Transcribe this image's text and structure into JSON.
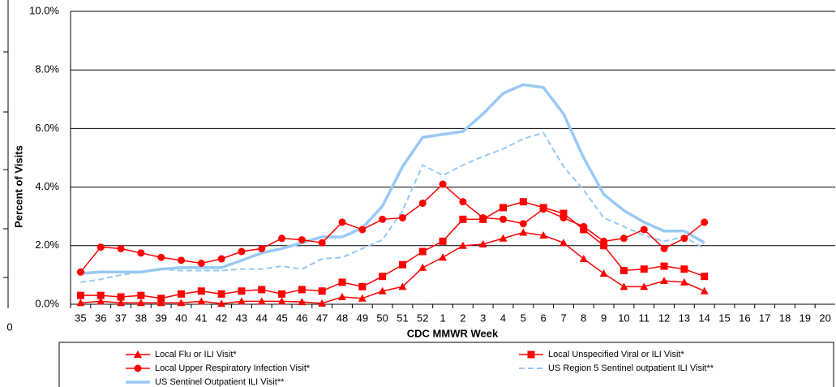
{
  "clipped_panel": {
    "x_tick_label": "0"
  },
  "chart_data": {
    "type": "line",
    "y_label": "Percent of Visits",
    "x_label": "CDC MMWR Week",
    "categories": [
      "35",
      "36",
      "37",
      "38",
      "39",
      "40",
      "41",
      "42",
      "43",
      "44",
      "45",
      "46",
      "47",
      "48",
      "49",
      "50",
      "51",
      "52",
      "1",
      "2",
      "3",
      "4",
      "5",
      "6",
      "7",
      "8",
      "9",
      "10",
      "11",
      "12",
      "13",
      "14",
      "15",
      "16",
      "17",
      "18",
      "19",
      "20"
    ],
    "ylim": [
      0,
      10
    ],
    "yticks": [
      {
        "value": 0,
        "label": "0.0%"
      },
      {
        "value": 2,
        "label": "2.0%"
      },
      {
        "value": 4,
        "label": "4.0%"
      },
      {
        "value": 6,
        "label": "6.0%"
      },
      {
        "value": 8,
        "label": "8.0%"
      },
      {
        "value": 10,
        "label": "10.0%"
      }
    ],
    "grid": true,
    "legend": "bottom",
    "series": [
      {
        "name": "Local Flu or ILI Visit*",
        "color": "#ff0000",
        "marker": "triangle",
        "dashed": false,
        "width": 1.5,
        "values": [
          0.05,
          0.1,
          0.05,
          0.05,
          0.05,
          0.05,
          0.1,
          0.02,
          0.1,
          0.1,
          0.1,
          0.08,
          0.03,
          0.25,
          0.2,
          0.45,
          0.6,
          1.25,
          1.6,
          2.0,
          2.05,
          2.25,
          2.45,
          2.35,
          2.1,
          1.55,
          1.05,
          0.6,
          0.6,
          0.8,
          0.75,
          0.45,
          null,
          null,
          null,
          null,
          null,
          null
        ]
      },
      {
        "name": "Local Unspecified Viral or ILI Visit*",
        "color": "#ff0000",
        "marker": "square",
        "dashed": false,
        "width": 1.5,
        "values": [
          0.3,
          0.3,
          0.25,
          0.3,
          0.2,
          0.35,
          0.45,
          0.35,
          0.45,
          0.5,
          0.35,
          0.5,
          0.45,
          0.75,
          0.6,
          0.95,
          1.35,
          1.8,
          2.15,
          2.9,
          2.9,
          3.3,
          3.5,
          3.3,
          3.1,
          2.55,
          2.0,
          1.15,
          1.2,
          1.3,
          1.2,
          0.95,
          null,
          null,
          null,
          null,
          null,
          null
        ]
      },
      {
        "name": "Local Upper Respiratory Infection Visit*",
        "color": "#ff0000",
        "marker": "circle",
        "dashed": false,
        "width": 1.5,
        "values": [
          1.1,
          1.95,
          1.9,
          1.75,
          1.6,
          1.5,
          1.4,
          1.55,
          1.8,
          1.9,
          2.25,
          2.2,
          2.1,
          2.8,
          2.55,
          2.9,
          2.95,
          3.45,
          4.1,
          3.5,
          2.95,
          2.9,
          2.75,
          3.25,
          2.95,
          2.65,
          2.15,
          2.25,
          2.55,
          1.9,
          2.25,
          2.8,
          null,
          null,
          null,
          null,
          null,
          null
        ]
      },
      {
        "name": "US Region 5 Sentinel outpatient ILI Visit**",
        "color": "#99c9f5",
        "marker": "none",
        "dashed": true,
        "width": 2,
        "values": [
          0.75,
          0.85,
          1.0,
          1.1,
          1.2,
          1.15,
          1.15,
          1.15,
          1.2,
          1.2,
          1.3,
          1.2,
          1.55,
          1.6,
          1.9,
          2.2,
          3.2,
          4.75,
          4.4,
          4.75,
          5.05,
          5.3,
          5.65,
          5.85,
          4.7,
          3.9,
          2.95,
          2.65,
          2.35,
          2.15,
          2.3,
          1.9,
          null,
          null,
          null,
          null,
          null,
          null
        ]
      },
      {
        "name": "US Sentinel Outpatient ILI Visit**",
        "color": "#99c9f5",
        "marker": "none",
        "dashed": false,
        "width": 3.5,
        "values": [
          1.05,
          1.1,
          1.1,
          1.1,
          1.2,
          1.25,
          1.25,
          1.25,
          1.5,
          1.75,
          1.9,
          2.1,
          2.3,
          2.3,
          2.6,
          3.35,
          4.7,
          5.7,
          5.8,
          5.9,
          6.5,
          7.2,
          7.5,
          7.4,
          6.5,
          5.0,
          3.75,
          3.2,
          2.8,
          2.5,
          2.5,
          2.1,
          null,
          null,
          null,
          null,
          null,
          null
        ]
      }
    ]
  }
}
